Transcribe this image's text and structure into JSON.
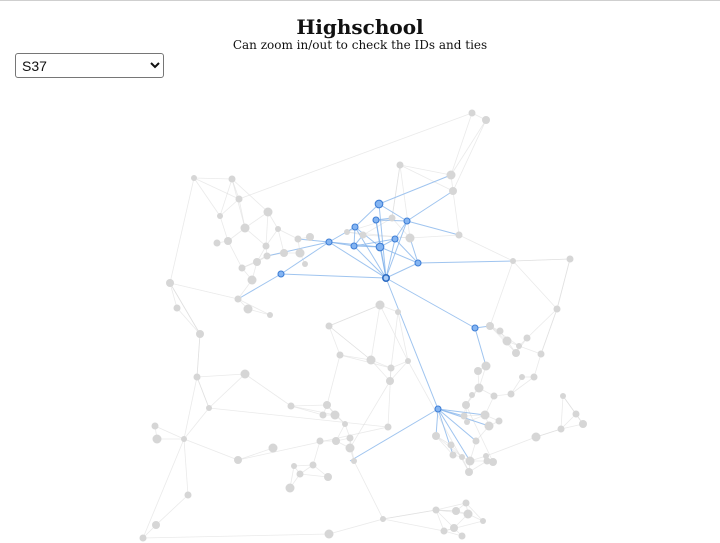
{
  "header": {
    "title": "Highschool",
    "subtitle": "Can zoom in/out to check the IDs and ties"
  },
  "selector": {
    "selected": "S37",
    "options": [
      "S37"
    ]
  },
  "colors": {
    "node_default": "#d6d6d6",
    "node_highlight": "#85b5f2",
    "edge_default": "#d9d9d9",
    "edge_highlight": "#7fb0ea"
  },
  "network": {
    "selected_node": "S37",
    "highlighted_nodes": 13,
    "total_nodes": 160
  }
}
